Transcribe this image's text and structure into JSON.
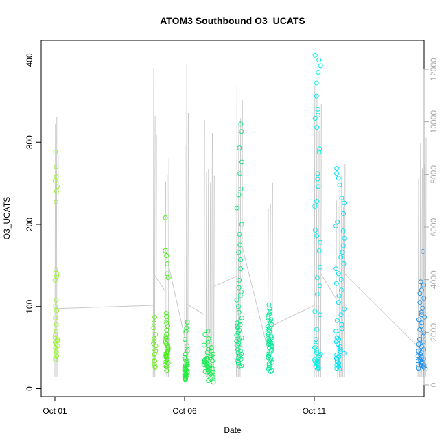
{
  "chart_data": {
    "type": "scatter",
    "title": "ATOM3 Southbound O3_UCATS",
    "xlabel": "Date",
    "ylabel": "O3_UCATS",
    "x_axis": {
      "type": "date",
      "range": [
        "2017-10-01T00:00",
        "2017-10-15T12:00"
      ],
      "ticks": [
        {
          "value": "2017-10-01",
          "label": "Oct 01"
        },
        {
          "value": "2017-10-06",
          "label": "Oct 06"
        },
        {
          "value": "2017-10-11",
          "label": "Oct 11"
        }
      ]
    },
    "y_axis": {
      "range": [
        0,
        410
      ],
      "ticks": [
        0,
        100,
        200,
        300,
        400
      ]
    },
    "y2_axis": {
      "range": [
        0,
        12300
      ],
      "ticks": [
        0,
        2000,
        4000,
        6000,
        8000,
        10000,
        12000
      ],
      "color": "#aaaaaa"
    },
    "grid": false,
    "colors": {
      "altitude_line": "#c8c8c8",
      "point_gradient_start": "#9cf23a",
      "point_gradient_end": "#1e90ff"
    },
    "flights": [
      {
        "date": "2017-10-01",
        "start": "2017-10-01T00:00",
        "end": "2017-10-01T00:14",
        "o3_min": 35,
        "o3_max": 288,
        "alt_max": 11600,
        "color": "#9df53a",
        "o3_samples": [
          288,
          270,
          258,
          253,
          246,
          240,
          227,
          145,
          140,
          137,
          132,
          108,
          100,
          95,
          86,
          78,
          70,
          66,
          62,
          60,
          58,
          56,
          54,
          52,
          50,
          47,
          44,
          40,
          37,
          35
        ]
      },
      {
        "date": "2017-10-04",
        "start": "2017-10-04T19:00",
        "end": "2017-10-04T19:15",
        "o3_min": 26,
        "o3_max": 87,
        "alt_max": 12100,
        "color": "#70f028",
        "o3_samples": [
          87,
          80,
          74,
          66,
          61,
          58,
          55,
          52,
          49,
          46,
          42,
          38,
          34,
          30,
          27,
          26
        ]
      },
      {
        "date": "2017-10-05",
        "start": "2017-10-05T06:00",
        "end": "2017-10-05T09:00",
        "o3_min": 22,
        "o3_max": 208,
        "alt_max": 10200,
        "color": "#4cee1e",
        "o3_samples": [
          208,
          168,
          162,
          152,
          140,
          135,
          92,
          88,
          83,
          80,
          76,
          71,
          66,
          63,
          61,
          59,
          57,
          55,
          53,
          51,
          50,
          48,
          46,
          45,
          44,
          43,
          42,
          41,
          40,
          39,
          38,
          36,
          35,
          33,
          31,
          29,
          27,
          24,
          22
        ]
      },
      {
        "date": "2017-10-06",
        "start": "2017-10-06T00:00",
        "end": "2017-10-06T03:00",
        "o3_min": 11,
        "o3_max": 81,
        "alt_max": 12200,
        "color": "#22ed3a",
        "o3_samples": [
          81,
          74,
          70,
          60,
          52,
          46,
          42,
          38,
          36,
          34,
          32,
          30,
          29,
          28,
          27,
          26,
          25,
          24,
          23,
          22,
          21,
          20,
          19,
          18,
          17,
          16,
          15,
          14,
          13,
          12,
          11
        ]
      },
      {
        "date": "2017-10-07",
        "start": "2017-10-06T18:00",
        "end": "2017-10-07T03:00",
        "o3_min": 8,
        "o3_max": 70,
        "alt_max": 10700,
        "color": "#16ec50",
        "o3_samples": [
          70,
          66,
          61,
          57,
          53,
          50,
          48,
          46,
          44,
          42,
          40,
          38,
          37,
          36,
          35,
          34,
          33,
          32,
          31,
          30,
          29,
          28,
          27,
          26,
          25,
          24,
          23,
          22,
          21,
          20,
          18,
          16,
          14,
          12,
          10,
          8
        ]
      },
      {
        "date": "2017-10-08",
        "start": "2017-10-08T00:00",
        "end": "2017-10-08T05:00",
        "o3_min": 27,
        "o3_max": 322,
        "alt_max": 11800,
        "color": "#0eeb82",
        "o3_samples": [
          322,
          313,
          293,
          276,
          262,
          243,
          236,
          220,
          200,
          188,
          175,
          166,
          157,
          146,
          132,
          123,
          118,
          113,
          108,
          100,
          93,
          86,
          82,
          80,
          78,
          76,
          74,
          71,
          68,
          65,
          62,
          60,
          58,
          55,
          53,
          50,
          48,
          46,
          44,
          42,
          40,
          38,
          36,
          34,
          32,
          30,
          28,
          27
        ]
      },
      {
        "date": "2017-10-09",
        "start": "2017-10-09T05:00",
        "end": "2017-10-09T09:00",
        "o3_min": 21,
        "o3_max": 102,
        "alt_max": 9000,
        "color": "#0ae898",
        "o3_samples": [
          102,
          97,
          94,
          91,
          88,
          86,
          84,
          82,
          80,
          78,
          76,
          74,
          72,
          70,
          68,
          66,
          64,
          62,
          61,
          60,
          59,
          58,
          57,
          56,
          55,
          54,
          53,
          52,
          51,
          50,
          48,
          46,
          44,
          42,
          40,
          38,
          36,
          34,
          32,
          30,
          28,
          26,
          24,
          22,
          21
        ]
      },
      {
        "date": "2017-10-11",
        "start": "2017-10-11T00:00",
        "end": "2017-10-11T06:00",
        "o3_min": 24,
        "o3_max": 406,
        "alt_max": 12100,
        "color": "#04f2e8",
        "o3_samples": [
          406,
          400,
          393,
          385,
          372,
          356,
          340,
          333,
          329,
          318,
          292,
          288,
          262,
          255,
          246,
          228,
          222,
          193,
          186,
          178,
          168,
          148,
          135,
          125,
          115,
          94,
          90,
          72,
          60,
          53,
          50,
          47,
          44,
          42,
          40,
          38,
          36,
          35,
          34,
          33,
          32,
          31,
          30,
          29,
          28,
          27,
          26,
          25,
          24
        ]
      },
      {
        "date": "2017-10-12",
        "start": "2017-10-11T20:00",
        "end": "2017-10-12T04:00",
        "o3_min": 24,
        "o3_max": 268,
        "alt_max": 9400,
        "color": "#08e0f4",
        "o3_samples": [
          268,
          262,
          256,
          248,
          232,
          226,
          213,
          203,
          198,
          192,
          183,
          174,
          166,
          160,
          152,
          146,
          140,
          133,
          128,
          120,
          113,
          105,
          97,
          90,
          83,
          78,
          73,
          70,
          66,
          62,
          60,
          57,
          54,
          51,
          48,
          45,
          43,
          41,
          39,
          37,
          35,
          33,
          31,
          29,
          27,
          25,
          24
        ]
      },
      {
        "date": "2017-10-15",
        "start": "2017-10-15T00:00",
        "end": "2017-10-15T07:00",
        "o3_min": 24,
        "o3_max": 167,
        "alt_max": 9700,
        "color": "#1e94f2",
        "o3_samples": [
          167,
          130,
          126,
          120,
          116,
          110,
          105,
          98,
          93,
          90,
          87,
          84,
          80,
          76,
          72,
          68,
          64,
          60,
          57,
          54,
          51,
          48,
          46,
          44,
          42,
          40,
          38,
          36,
          35,
          34,
          33,
          32,
          31,
          30,
          29,
          28,
          27,
          26,
          25,
          24
        ]
      }
    ]
  }
}
